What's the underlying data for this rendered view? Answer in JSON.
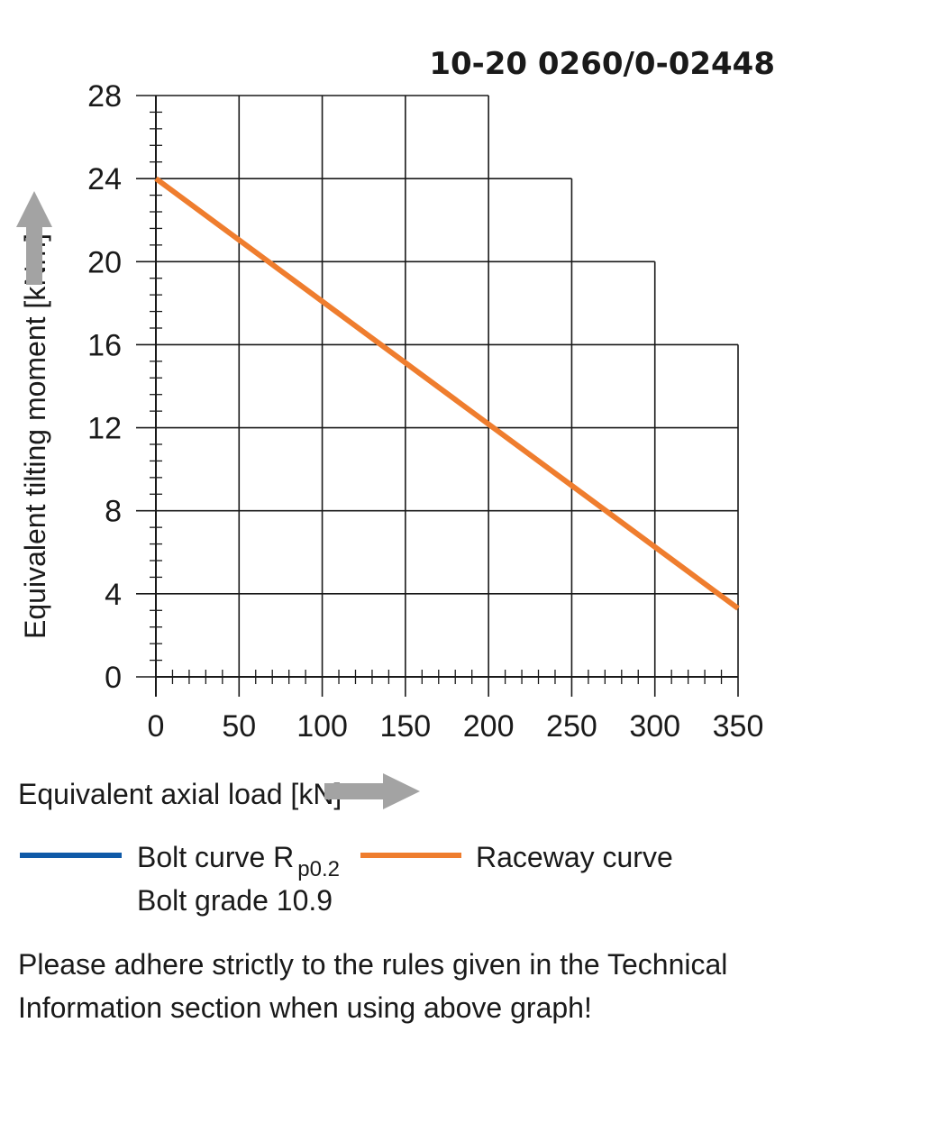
{
  "chart_data": {
    "type": "line",
    "title": "10-20 0260/0-02448",
    "xlabel": "Equivalent axial load [kN]",
    "ylabel": "Equivalent tilting moment [kNm]",
    "xlim": [
      0,
      350
    ],
    "ylim": [
      0,
      28
    ],
    "x_ticks": [
      0,
      50,
      100,
      150,
      200,
      250,
      300,
      350
    ],
    "y_ticks": [
      0,
      4,
      8,
      12,
      16,
      20,
      24,
      28
    ],
    "grid": true,
    "grid_outline": [
      {
        "x": 200,
        "y_max": 28
      },
      {
        "x": 250,
        "y_max": 24
      },
      {
        "x": 300,
        "y_max": 20
      },
      {
        "x": 350,
        "y_max": 16
      }
    ],
    "series": [
      {
        "name": "Raceway curve",
        "color": "#ef7d2e",
        "x": [
          0,
          350
        ],
        "y": [
          24,
          3.3
        ]
      }
    ],
    "legend": {
      "placement": "bottom-left",
      "items": [
        {
          "label": "Bolt curve  R",
          "subscript": "p0.2",
          "second_line": "Bolt grade 10.9",
          "color": "#0f5aa8"
        },
        {
          "label": "Raceway curve",
          "color": "#ef7d2e"
        }
      ]
    },
    "arrow_color": "#a3a3a3"
  },
  "note": {
    "line1": "Please adhere strictly to the rules given in the Technical",
    "line2": "Information section when using above graph!"
  }
}
